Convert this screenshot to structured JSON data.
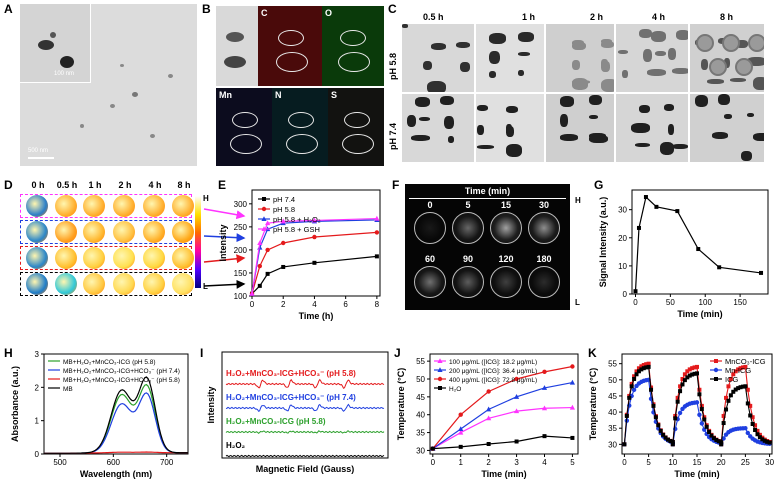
{
  "panels": {
    "A": {
      "letter": "A",
      "inset_scale": "100 nm",
      "scale": "500 nm"
    },
    "B": {
      "letter": "B",
      "elements": [
        "C",
        "O",
        "Mn",
        "N",
        "S"
      ]
    },
    "C": {
      "letter": "C",
      "times": [
        "0.5 h",
        "1 h",
        "2 h",
        "4 h",
        "8 h"
      ],
      "rows": [
        "pH 5.8",
        "pH 7.4"
      ]
    },
    "D": {
      "letter": "D",
      "times": [
        "0 h",
        "0.5 h",
        "1 h",
        "2 h",
        "4 h",
        "8 h"
      ],
      "scale_high": "H",
      "scale_low": "L"
    },
    "E": {
      "letter": "E"
    },
    "F": {
      "letter": "F",
      "header": "Time (min)",
      "times_row1": [
        "0",
        "5",
        "15",
        "30"
      ],
      "times_row2": [
        "60",
        "90",
        "120",
        "180"
      ],
      "scale_high": "H",
      "scale_low": "L"
    },
    "G": {
      "letter": "G"
    },
    "H": {
      "letter": "H"
    },
    "I": {
      "letter": "I"
    },
    "J": {
      "letter": "J"
    },
    "K": {
      "letter": "K"
    }
  },
  "colors": {
    "black": "#000000",
    "red": "#e41a1c",
    "blue": "#1f3fe0",
    "magenta": "#ff33ff",
    "green": "#2ca02c"
  },
  "chart_data": [
    {
      "id": "E",
      "type": "line",
      "xlabel": "Time (h)",
      "ylabel": "Intensity",
      "xlim": [
        0,
        8.2
      ],
      "ylim": [
        100,
        330
      ],
      "xticks": [
        0,
        2,
        4,
        6,
        8
      ],
      "yticks": [
        100,
        150,
        200,
        250,
        300
      ],
      "x": [
        0,
        0.5,
        1,
        2,
        4,
        8
      ],
      "series": [
        {
          "name": "pH 7.4",
          "color": "#000000",
          "values": [
            105,
            122,
            148,
            163,
            172,
            186
          ]
        },
        {
          "name": "pH 5.8",
          "color": "#e41a1c",
          "values": [
            105,
            165,
            200,
            215,
            228,
            238
          ]
        },
        {
          "name": "pH 5.8 + H₂O₂",
          "color": "#1f3fe0",
          "values": [
            105,
            205,
            245,
            258,
            262,
            265
          ]
        },
        {
          "name": "pH 5.8 + GSH",
          "color": "#ff33ff",
          "values": [
            105,
            215,
            258,
            262,
            264,
            268
          ]
        }
      ]
    },
    {
      "id": "G",
      "type": "line",
      "xlabel": "Time (min)",
      "ylabel": "Signal Intensity (a.u.)",
      "xlim": [
        -5,
        190
      ],
      "ylim": [
        0,
        37
      ],
      "xticks": [
        0,
        50,
        100,
        150
      ],
      "yticks": [
        0,
        10,
        20,
        30
      ],
      "x": [
        0,
        5,
        15,
        30,
        60,
        90,
        120,
        180
      ],
      "series": [
        {
          "name": "",
          "color": "#000000",
          "values": [
            1,
            23.5,
            34.5,
            31,
            29.5,
            16,
            9.5,
            7.5
          ]
        }
      ]
    },
    {
      "id": "H",
      "type": "line",
      "xlabel": "Wavelength (nm)",
      "ylabel": "Absorbance (a.u.)",
      "xlim": [
        470,
        740
      ],
      "ylim": [
        0,
        3
      ],
      "xticks": [
        500,
        600,
        700
      ],
      "yticks": [
        0,
        1,
        2,
        3
      ],
      "series": [
        {
          "name": "MB+H₂O₂+MnCO₃-ICG (pH 5.8)",
          "color": "#2ca02c",
          "peaks": [
            [
              615,
              1.9
            ],
            [
              663,
              2.02
            ]
          ]
        },
        {
          "name": "MB+H₂O₂+MnCO₃-ICG+HCO₃⁻ (pH 7.4)",
          "color": "#1f3fe0",
          "peaks": [
            [
              615,
              1.6
            ],
            [
              663,
              1.78
            ]
          ]
        },
        {
          "name": "MB+H₂O₂+MnCO₃-ICG+HCO₃⁻ (pH 5.8)",
          "color": "#e41a1c",
          "peaks": [
            [
              615,
              0.02
            ],
            [
              663,
              0.02
            ]
          ]
        },
        {
          "name": "MB",
          "color": "#000000",
          "peaks": [
            [
              615,
              2.05
            ],
            [
              663,
              2.25
            ]
          ]
        }
      ]
    },
    {
      "id": "I",
      "type": "line",
      "xlabel": "Magnetic Field (Gauss)",
      "ylabel": "Intensity",
      "series": [
        {
          "name": "H₂O₂+MnCO₃-ICG+HCO₃⁻ (pH 5.8)",
          "color": "#e41a1c",
          "amp": 1.0
        },
        {
          "name": "H₂O₂+MnCO₃-ICG+HCO₃⁻ (pH 7.4)",
          "color": "#1f3fe0",
          "amp": 0.55
        },
        {
          "name": "H₂O₂+MnCO₃-ICG (pH 5.8)",
          "color": "#2ca02c",
          "amp": 0.18
        },
        {
          "name": "H₂O₂",
          "color": "#000000",
          "amp": 0.0
        }
      ]
    },
    {
      "id": "J",
      "type": "line",
      "xlabel": "Time (min)",
      "ylabel": "Temperature (°C)",
      "xlim": [
        -0.1,
        5.2
      ],
      "ylim": [
        29,
        57
      ],
      "xticks": [
        0,
        1,
        2,
        3,
        4,
        5
      ],
      "yticks": [
        30,
        35,
        40,
        45,
        50,
        55
      ],
      "x": [
        0,
        1,
        2,
        3,
        4,
        5
      ],
      "series": [
        {
          "name": "100 μg/mL ([ICG]: 18.2 μg/mL)",
          "color": "#ff33ff",
          "values": [
            30.5,
            35,
            39,
            41,
            41.8,
            42
          ]
        },
        {
          "name": "200 μg/mL ([ICG]: 36.4 μg/mL)",
          "color": "#1f3fe0",
          "values": [
            30.5,
            36,
            41.5,
            45,
            47.5,
            49
          ]
        },
        {
          "name": "400 μg/mL ([ICG]: 72.8 μg/mL)",
          "color": "#e41a1c",
          "values": [
            30.5,
            40,
            46.5,
            50,
            52,
            53.5
          ]
        },
        {
          "name": "H₂O",
          "color": "#000000",
          "values": [
            30.5,
            31,
            31.8,
            32.5,
            34,
            33.5
          ]
        }
      ]
    },
    {
      "id": "K",
      "type": "line",
      "xlabel": "Time (min)",
      "ylabel": "Temperature (°C)",
      "xlim": [
        -0.5,
        30.5
      ],
      "ylim": [
        27,
        58
      ],
      "xticks": [
        0,
        5,
        10,
        15,
        20,
        25,
        30
      ],
      "yticks": [
        30,
        35,
        40,
        45,
        50,
        55
      ],
      "series": [
        {
          "name": "MnCO₃-ICG",
          "color": "#e41a1c",
          "peaks": [
            55,
            54,
            54
          ]
        },
        {
          "name": "Mn-ICG",
          "color": "#1f3fe0",
          "peaks": [
            50,
            43,
            35
          ]
        },
        {
          "name": "ICG",
          "color": "#000000",
          "peaks": [
            54,
            52,
            48
          ]
        }
      ]
    }
  ]
}
